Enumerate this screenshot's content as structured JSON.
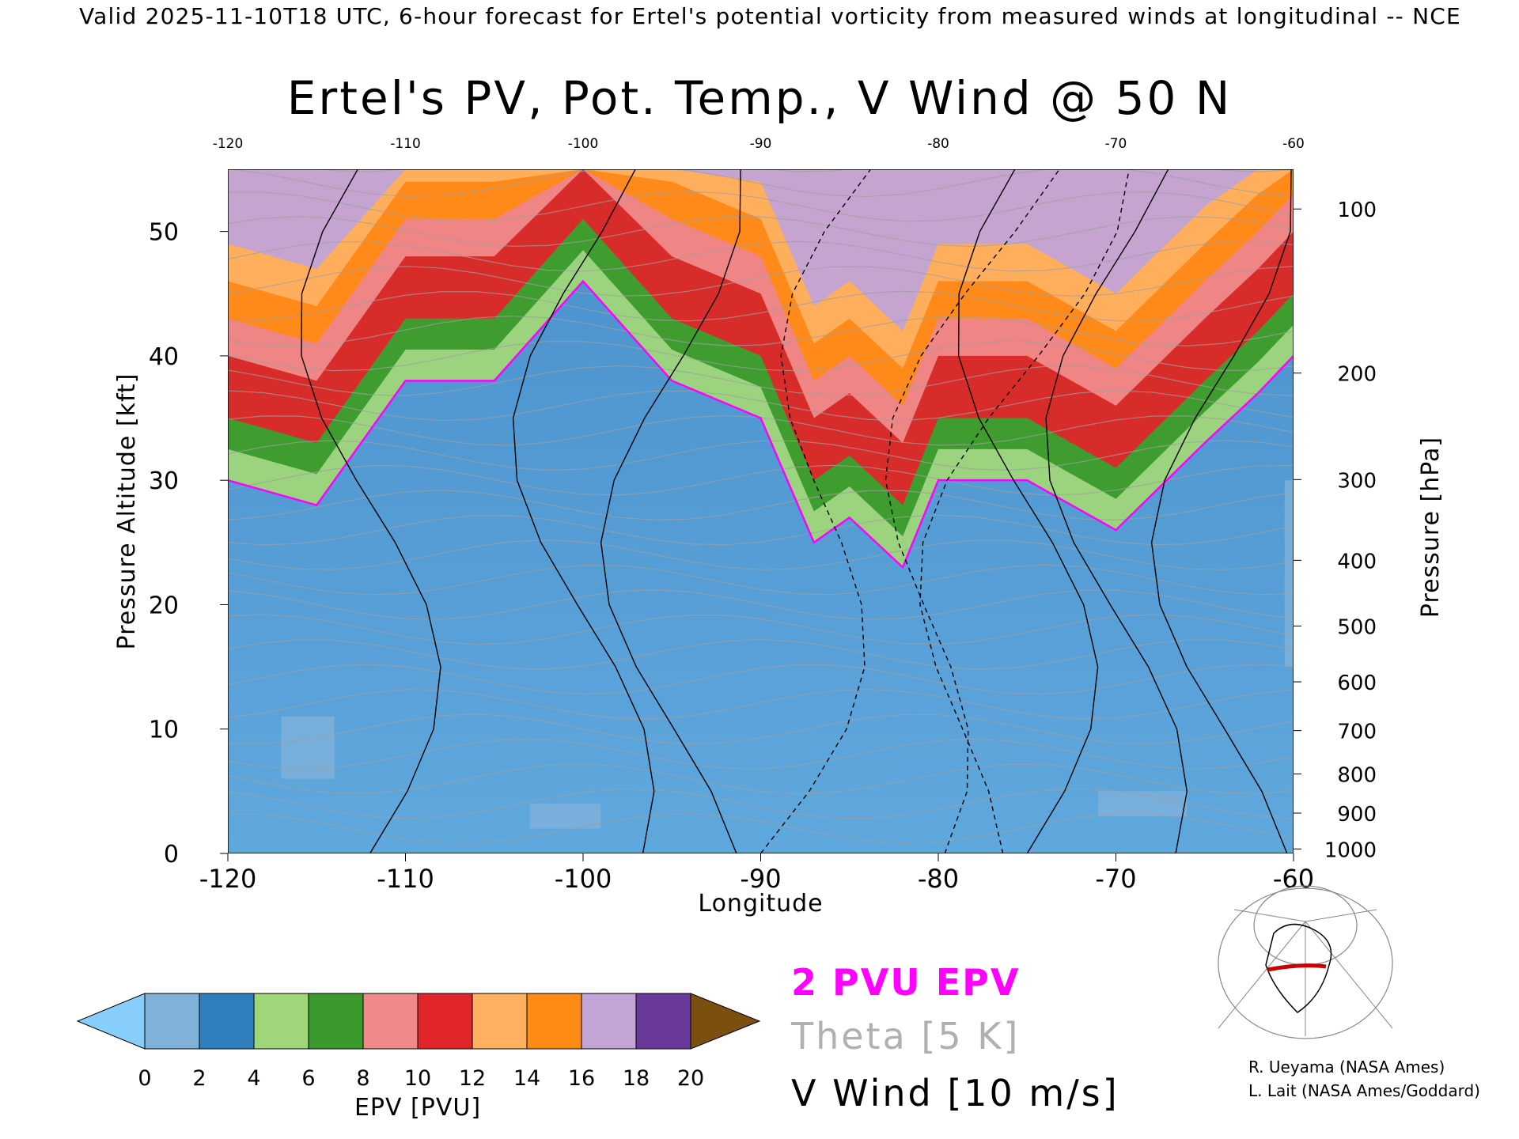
{
  "header": {
    "top_line": "Valid 2025-11-10T18 UTC, 6-hour forecast for Ertel's potential vorticity from measured winds at longitudinal -- NCE",
    "title": "Ertel's PV, Pot. Temp., V Wind @ 50 N"
  },
  "legend": {
    "epv_contour": "2 PVU EPV",
    "theta": "Theta [5 K]",
    "vwind": "V Wind [10 m/s]"
  },
  "credits": {
    "line1": "R. Ueyama (NASA Ames)",
    "line2": "L. Lait (NASA Ames/Goddard)"
  },
  "colors": {
    "epv_contour": "#ff00ff",
    "theta_contour": "#a0a0a0",
    "wind_contour": "#000000",
    "trajectory": "#cc0000"
  },
  "chart_data": {
    "type": "heatmap",
    "title": "Ertel's PV, Pot. Temp., V Wind @ 50 N",
    "xlabel": "Longitude",
    "ylabel": "Pressure Altitude [kft]",
    "y2label": "Pressure [hPa]",
    "xlim": [
      -120,
      -60
    ],
    "ylim": [
      0,
      55
    ],
    "x_ticks": [
      -120,
      -110,
      -100,
      -90,
      -80,
      -70,
      -60
    ],
    "y_ticks": [
      0,
      10,
      20,
      30,
      40,
      50
    ],
    "pressure_ticks": [
      100,
      200,
      300,
      400,
      500,
      600,
      700,
      800,
      900,
      1000
    ],
    "colorbar": {
      "label": "EPV [PVU]",
      "ticks": [
        0,
        2,
        4,
        6,
        8,
        10,
        12,
        14,
        16,
        18,
        20
      ],
      "extend": "both",
      "under_color": "#87cefa",
      "over_color": "#7b4f0d",
      "colors": [
        "#7fb1d9",
        "#2f7fbf",
        "#9fd67a",
        "#3a9a2c",
        "#f08a8a",
        "#e0262a",
        "#ffb060",
        "#ff8a14",
        "#c2a4d6",
        "#6a3a9a",
        "#f8f09a",
        "#7b4f0d"
      ]
    },
    "epv_profile": {
      "longitude": [
        -120,
        -115,
        -110,
        -105,
        -100,
        -95,
        -90,
        -87,
        -85,
        -82,
        -80,
        -75,
        -70,
        -65,
        -62,
        -60
      ],
      "tropopause_kft": [
        30,
        28,
        38,
        38,
        46,
        38,
        35,
        25,
        27,
        23,
        30,
        30,
        26,
        33,
        37,
        40
      ]
    }
  }
}
